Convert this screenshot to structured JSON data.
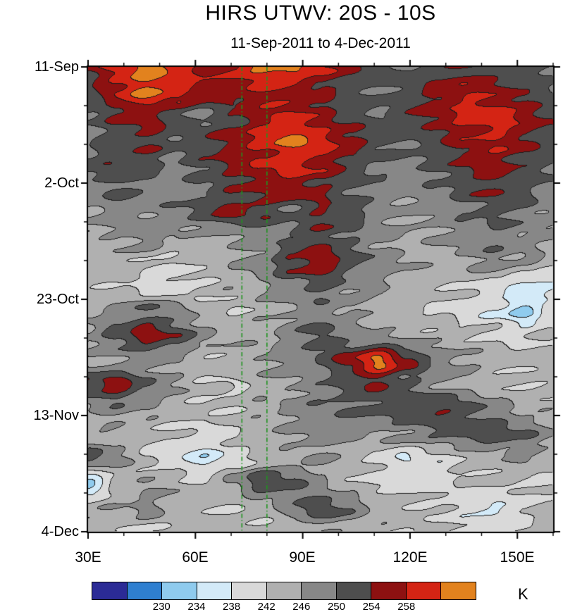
{
  "chart_data": {
    "type": "heatmap",
    "title": "HIRS UTWV: 20S - 10S",
    "subtitle": "11-Sep-2011 to 4-Dec-2011",
    "unit": "K",
    "legend_position": "bottom",
    "grid": false,
    "x_axis": {
      "range_lon_east": [
        30,
        160
      ],
      "ticks": [
        {
          "label": "30E",
          "lon": 30
        },
        {
          "label": "60E",
          "lon": 60
        },
        {
          "label": "90E",
          "lon": 90
        },
        {
          "label": "120E",
          "lon": 120
        },
        {
          "label": "150E",
          "lon": 150
        }
      ],
      "minor_tick_step_deg": 10
    },
    "y_axis": {
      "range_days": [
        0,
        84
      ],
      "direction": "time increases downward",
      "ticks": [
        {
          "label": "11-Sep",
          "day": 0
        },
        {
          "label": "2-Oct",
          "day": 21
        },
        {
          "label": "23-Oct",
          "day": 42
        },
        {
          "label": "13-Nov",
          "day": 63
        },
        {
          "label": "4-Dec",
          "day": 84
        }
      ],
      "minor_tick_step_days": 7
    },
    "contour_levels": [
      226,
      230,
      234,
      238,
      242,
      246,
      250,
      254,
      258,
      262
    ],
    "colors": [
      "#2b2b96",
      "#2f7fd0",
      "#8fcbee",
      "#d3eaf8",
      "#d9d9d9",
      "#b0b0b0",
      "#878787",
      "#4e4e4e",
      "#8d1111",
      "#d42414",
      "#e2821e"
    ],
    "colorbar_labels": [
      "230",
      "234",
      "238",
      "242",
      "246",
      "250",
      "254",
      "258"
    ],
    "contour_line_color": "#1c1c1c",
    "reference_lines": {
      "color": "#209420",
      "style": "dash-dot",
      "lons": [
        73,
        80
      ]
    },
    "lons": [
      30,
      38.1,
      46.3,
      54.4,
      62.5,
      70.6,
      78.8,
      86.9,
      95,
      103.1,
      111.3,
      119.4,
      127.5,
      135.6,
      143.8,
      151.9,
      160
    ],
    "days": [
      0,
      4.4,
      8.8,
      13.3,
      17.7,
      22.1,
      26.5,
      30.9,
      35.4,
      39.8,
      44.2,
      48.6,
      53.1,
      57.5,
      61.9,
      66.3,
      70.7,
      75.2,
      79.6,
      84
    ],
    "values": [
      [
        254,
        260,
        263,
        261,
        257,
        259,
        263,
        263,
        259,
        254,
        251,
        250,
        252,
        254,
        252,
        250,
        249
      ],
      [
        252,
        258,
        263,
        260,
        256,
        255,
        258,
        256,
        254,
        252,
        250,
        252,
        255,
        258,
        256,
        253,
        251
      ],
      [
        250,
        254,
        256,
        252,
        249,
        253,
        257,
        259,
        256,
        252,
        250,
        253,
        256,
        259,
        261,
        257,
        253
      ],
      [
        249,
        252,
        254,
        251,
        253,
        256,
        259,
        263,
        260,
        256,
        252,
        250,
        253,
        256,
        258,
        255,
        252
      ],
      [
        251,
        254,
        252,
        249,
        252,
        255,
        258,
        260,
        257,
        253,
        250,
        249,
        251,
        254,
        256,
        253,
        250
      ],
      [
        248,
        251,
        249,
        247,
        250,
        253,
        255,
        256,
        254,
        251,
        248,
        247,
        249,
        252,
        254,
        251,
        249
      ],
      [
        246,
        248,
        247,
        249,
        252,
        255,
        253,
        250,
        254,
        252,
        248,
        246,
        247,
        249,
        251,
        249,
        247
      ],
      [
        244,
        246,
        248,
        246,
        244,
        246,
        248,
        250,
        253,
        250,
        247,
        245,
        246,
        248,
        249,
        247,
        246
      ],
      [
        243,
        244,
        242,
        241,
        243,
        245,
        248,
        254,
        257,
        252,
        248,
        246,
        244,
        246,
        248,
        246,
        244
      ],
      [
        244,
        243,
        241,
        240,
        242,
        244,
        246,
        249,
        251,
        248,
        246,
        244,
        243,
        242,
        240,
        236,
        238
      ],
      [
        245,
        247,
        250,
        248,
        244,
        242,
        244,
        246,
        248,
        246,
        244,
        243,
        242,
        240,
        238,
        233,
        240
      ],
      [
        246,
        252,
        256,
        253,
        247,
        244,
        245,
        248,
        252,
        248,
        246,
        245,
        244,
        243,
        242,
        241,
        243
      ],
      [
        245,
        246,
        247,
        245,
        243,
        244,
        246,
        248,
        250,
        256,
        263,
        255,
        249,
        246,
        244,
        243,
        244
      ],
      [
        254,
        256,
        250,
        246,
        243,
        242,
        244,
        246,
        248,
        252,
        254,
        250,
        247,
        245,
        243,
        242,
        243
      ],
      [
        246,
        248,
        246,
        244,
        242,
        243,
        245,
        247,
        249,
        250,
        251,
        252,
        254,
        252,
        248,
        245,
        244
      ],
      [
        244,
        245,
        243,
        242,
        241,
        242,
        244,
        246,
        248,
        247,
        246,
        248,
        250,
        252,
        253,
        250,
        246
      ],
      [
        252,
        247,
        242,
        239,
        236,
        240,
        243,
        245,
        246,
        244,
        241,
        238,
        240,
        243,
        245,
        246,
        245
      ],
      [
        233,
        242,
        246,
        244,
        242,
        247,
        253,
        251,
        246,
        243,
        241,
        240,
        241,
        242,
        243,
        242,
        241
      ],
      [
        243,
        245,
        247,
        245,
        243,
        242,
        244,
        248,
        253,
        249,
        245,
        243,
        242,
        240,
        237,
        241,
        243
      ],
      [
        244,
        243,
        242,
        243,
        244,
        243,
        242,
        244,
        246,
        245,
        244,
        243,
        242,
        241,
        240,
        242,
        244
      ]
    ]
  }
}
